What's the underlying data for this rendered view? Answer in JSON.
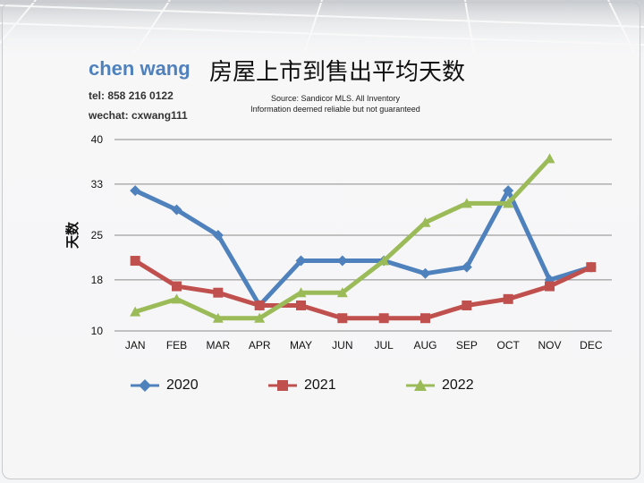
{
  "brand": {
    "name": "chen wang",
    "tel": "tel: 858 216 0122",
    "wechat": "wechat: cxwang111"
  },
  "header": {
    "title": "房屋上市到售出平均天数",
    "source_line1": "Source: Sandicor MLS. All Inventory",
    "source_line2": "Information deemed reliable but not guaranteed"
  },
  "chart_data": {
    "type": "line",
    "ylabel": "天数",
    "ylim": [
      10,
      40
    ],
    "yticks": [
      10,
      18,
      25,
      33,
      40
    ],
    "grid": true,
    "legend_position": "bottom",
    "categories": [
      "JAN",
      "FEB",
      "MAR",
      "APR",
      "MAY",
      "JUN",
      "JUL",
      "AUG",
      "SEP",
      "OCT",
      "NOV",
      "DEC"
    ],
    "series": [
      {
        "name": "2020",
        "color": "#4f81bd",
        "marker": "diamond",
        "values": [
          32,
          29,
          25,
          14,
          21,
          21,
          21,
          19,
          20,
          32,
          18,
          20
        ]
      },
      {
        "name": "2021",
        "color": "#c0504d",
        "marker": "square",
        "values": [
          21,
          17,
          16,
          14,
          14,
          12,
          12,
          12,
          14,
          15,
          17,
          20
        ]
      },
      {
        "name": "2022",
        "color": "#9bbb59",
        "marker": "triangle",
        "values": [
          13,
          15,
          12,
          12,
          16,
          16,
          21,
          27,
          30,
          30,
          37,
          null
        ]
      }
    ]
  }
}
